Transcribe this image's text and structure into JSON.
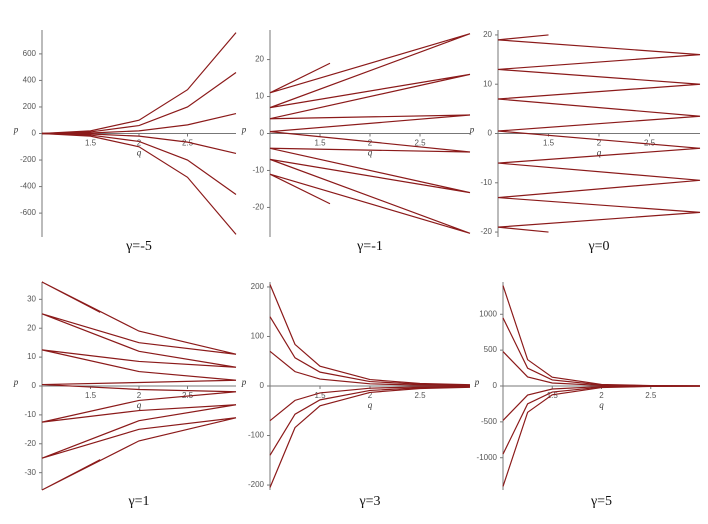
{
  "chart_data": [
    {
      "type": "line",
      "title": "γ=-5",
      "xlabel": "q",
      "ylabel": "p",
      "xlim": [
        1,
        3
      ],
      "ylim": [
        -780,
        780
      ],
      "xticks": [
        1.5,
        2,
        2.5
      ],
      "yticks": [
        600,
        400,
        200,
        0,
        -200,
        -400,
        -600
      ],
      "color": "#8b1a1a",
      "series": [
        {
          "x": [
            1,
            1.5,
            2,
            2.5,
            3
          ],
          "values": [
            0,
            20,
            100,
            330,
            760
          ]
        },
        {
          "x": [
            1,
            1.5,
            2,
            2.5,
            3
          ],
          "values": [
            0,
            12,
            60,
            200,
            460
          ]
        },
        {
          "x": [
            1,
            1.5,
            2,
            2.5,
            3
          ],
          "values": [
            0,
            4,
            20,
            65,
            150
          ]
        },
        {
          "x": [
            1,
            1.5,
            2,
            2.5,
            3
          ],
          "values": [
            0,
            -4,
            -20,
            -65,
            -150
          ]
        },
        {
          "x": [
            1,
            1.5,
            2,
            2.5,
            3
          ],
          "values": [
            0,
            -12,
            -60,
            -200,
            -460
          ]
        },
        {
          "x": [
            1,
            1.5,
            2,
            2.5,
            3
          ],
          "values": [
            0,
            -20,
            -100,
            -330,
            -760
          ]
        }
      ]
    },
    {
      "type": "line",
      "title": "γ=-1",
      "xlabel": "q",
      "ylabel": "p",
      "xlim": [
        1,
        3
      ],
      "ylim": [
        -28,
        28
      ],
      "xticks": [
        1.5,
        2,
        2.5
      ],
      "yticks": [
        20,
        10,
        0,
        -10,
        -20
      ],
      "color": "#8b1a1a",
      "series": [
        {
          "x": [
            1.6,
            1,
            3,
            1,
            3,
            1,
            3,
            1,
            3,
            1,
            3,
            1,
            3,
            1,
            1.6
          ],
          "values": [
            19,
            11,
            27,
            7,
            16,
            4,
            5,
            0.5,
            -5,
            -4,
            -16,
            -7,
            -27,
            -11,
            -19
          ]
        }
      ]
    },
    {
      "type": "line",
      "title": "γ=0",
      "xlabel": "q",
      "ylabel": "p",
      "xlim": [
        1,
        3
      ],
      "ylim": [
        -21,
        21
      ],
      "xticks": [
        1.5,
        2,
        2.5
      ],
      "yticks": [
        20,
        10,
        0,
        -10,
        -20
      ],
      "color": "#8b1a1a",
      "series": [
        {
          "x": [
            1.5,
            1,
            3,
            1,
            3,
            1,
            3,
            1,
            3,
            1,
            3,
            1,
            3,
            1,
            1.5
          ],
          "values": [
            20,
            19,
            16,
            13,
            10,
            7,
            3.5,
            0.5,
            -3,
            -6,
            -9.5,
            -13,
            -16,
            -19,
            -20
          ]
        }
      ]
    },
    {
      "type": "line",
      "title": "γ=1",
      "xlabel": "q",
      "ylabel": "p",
      "xlim": [
        1,
        3
      ],
      "ylim": [
        -36,
        36
      ],
      "xticks": [
        1.5,
        2,
        2.5
      ],
      "yticks": [
        30,
        20,
        10,
        0,
        -10,
        -20,
        -30
      ],
      "color": "#8b1a1a",
      "series": [
        {
          "x": [
            1.6,
            1,
            2,
            3,
            2,
            1,
            2,
            3,
            2,
            1,
            2,
            3,
            2,
            1,
            2,
            3,
            2,
            1,
            2,
            3,
            2,
            1,
            2,
            3,
            2,
            1,
            1.6
          ],
          "values": [
            25.5,
            36,
            19,
            11,
            15,
            25,
            12,
            6.5,
            8.5,
            12.5,
            5,
            2,
            1.2,
            0.5,
            -1.2,
            -2,
            -5,
            -12.5,
            -8.5,
            -6.5,
            -12,
            -25,
            -15,
            -11,
            -19,
            -36,
            -25.5
          ]
        }
      ]
    },
    {
      "type": "line",
      "title": "γ=3",
      "xlabel": "q",
      "ylabel": "p",
      "xlim": [
        1,
        3
      ],
      "ylim": [
        -210,
        210
      ],
      "xticks": [
        1.5,
        2,
        2.5
      ],
      "yticks": [
        200,
        100,
        0,
        -100,
        -200
      ],
      "color": "#8b1a1a",
      "series": [
        {
          "x": [
            1,
            1.25,
            1.5,
            2,
            2.5,
            3
          ],
          "values": [
            205,
            84,
            40,
            13,
            5,
            2.5
          ]
        },
        {
          "x": [
            1,
            1.25,
            1.5,
            2,
            2.5,
            3
          ],
          "values": [
            140,
            57,
            28,
            9,
            3.6,
            1.7
          ]
        },
        {
          "x": [
            1,
            1.25,
            1.5,
            2,
            2.5,
            3
          ],
          "values": [
            70,
            29,
            14,
            4.4,
            1.8,
            0.9
          ]
        },
        {
          "x": [
            1,
            1.25,
            1.5,
            2,
            2.5,
            3
          ],
          "values": [
            -70,
            -29,
            -14,
            -4.4,
            -1.8,
            -0.9
          ]
        },
        {
          "x": [
            1,
            1.25,
            1.5,
            2,
            2.5,
            3
          ],
          "values": [
            -140,
            -57,
            -28,
            -9,
            -3.6,
            -1.7
          ]
        },
        {
          "x": [
            1,
            1.25,
            1.5,
            2,
            2.5,
            3
          ],
          "values": [
            -205,
            -84,
            -40,
            -13,
            -5,
            -2.5
          ]
        }
      ]
    },
    {
      "type": "line",
      "title": "γ=5",
      "xlabel": "q",
      "ylabel": "p",
      "xlim": [
        1,
        3
      ],
      "ylim": [
        -1450,
        1450
      ],
      "xticks": [
        1.5,
        2,
        2.5
      ],
      "yticks": [
        1000,
        500,
        0,
        -500,
        -1000
      ],
      "color": "#8b1a1a",
      "series": [
        {
          "x": [
            1,
            1.25,
            1.5,
            2,
            2.5,
            3
          ],
          "values": [
            1400,
            367,
            123,
            22,
            6,
            2
          ]
        },
        {
          "x": [
            1,
            1.25,
            1.5,
            2,
            2.5,
            3
          ],
          "values": [
            950,
            249,
            84,
            15,
            4,
            1.3
          ]
        },
        {
          "x": [
            1,
            1.25,
            1.5,
            2,
            2.5,
            3
          ],
          "values": [
            480,
            126,
            42,
            7.5,
            2,
            0.7
          ]
        },
        {
          "x": [
            1,
            1.25,
            1.5,
            2,
            2.5,
            3
          ],
          "values": [
            -480,
            -126,
            -42,
            -7.5,
            -2,
            -0.7
          ]
        },
        {
          "x": [
            1,
            1.25,
            1.5,
            2,
            2.5,
            3
          ],
          "values": [
            -950,
            -249,
            -84,
            -15,
            -4,
            -1.3
          ]
        },
        {
          "x": [
            1,
            1.25,
            1.5,
            2,
            2.5,
            3
          ],
          "values": [
            -1400,
            -367,
            -123,
            -22,
            -6,
            -2
          ]
        }
      ]
    }
  ]
}
